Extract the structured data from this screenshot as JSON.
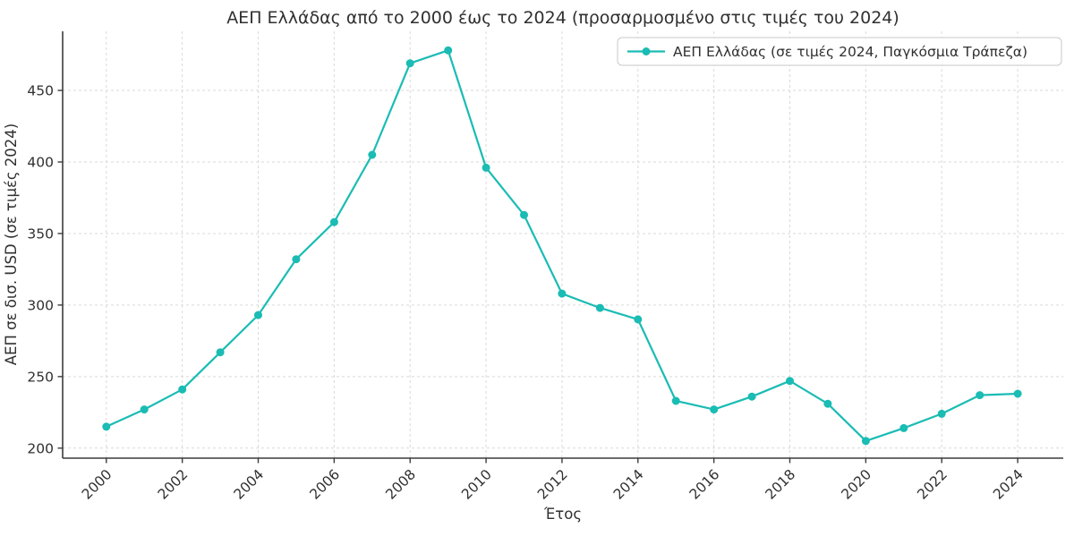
{
  "chart_data": {
    "type": "line",
    "title": "ΑΕΠ Ελλάδας από το 2000 έως το 2024 (προσαρμοσμένο στις τιμές του 2024)",
    "xlabel": "Έτος",
    "ylabel": "ΑΕΠ σε δισ. USD (σε τιμές 2024)",
    "x": [
      2000,
      2001,
      2002,
      2003,
      2004,
      2005,
      2006,
      2007,
      2008,
      2009,
      2010,
      2011,
      2012,
      2013,
      2014,
      2015,
      2016,
      2017,
      2018,
      2019,
      2020,
      2021,
      2022,
      2023,
      2024
    ],
    "series": [
      {
        "name": "ΑΕΠ Ελλάδας (σε τιμές 2024, Παγκόσμια Τράπεζα)",
        "values": [
          215,
          227,
          241,
          267,
          293,
          332,
          358,
          405,
          469,
          478,
          396,
          363,
          308,
          298,
          290,
          233,
          227,
          236,
          247,
          231,
          205,
          214,
          224,
          237,
          238
        ]
      }
    ],
    "xticks": [
      2000,
      2002,
      2004,
      2006,
      2008,
      2010,
      2012,
      2014,
      2016,
      2018,
      2020,
      2022,
      2024
    ],
    "yticks": [
      200,
      250,
      300,
      350,
      400,
      450
    ],
    "xlim": [
      1998.85,
      2025.2
    ],
    "ylim": [
      193,
      491.3
    ],
    "grid": true,
    "legend_position": "upper right"
  },
  "colors": {
    "line": "#1abcb4",
    "marker": "#1abcb4",
    "grid": "#d9d9d9",
    "spine": "#3c3c3c",
    "text": "#303030",
    "legend_border": "#c9c9c9",
    "legend_bg": "#ffffff"
  }
}
